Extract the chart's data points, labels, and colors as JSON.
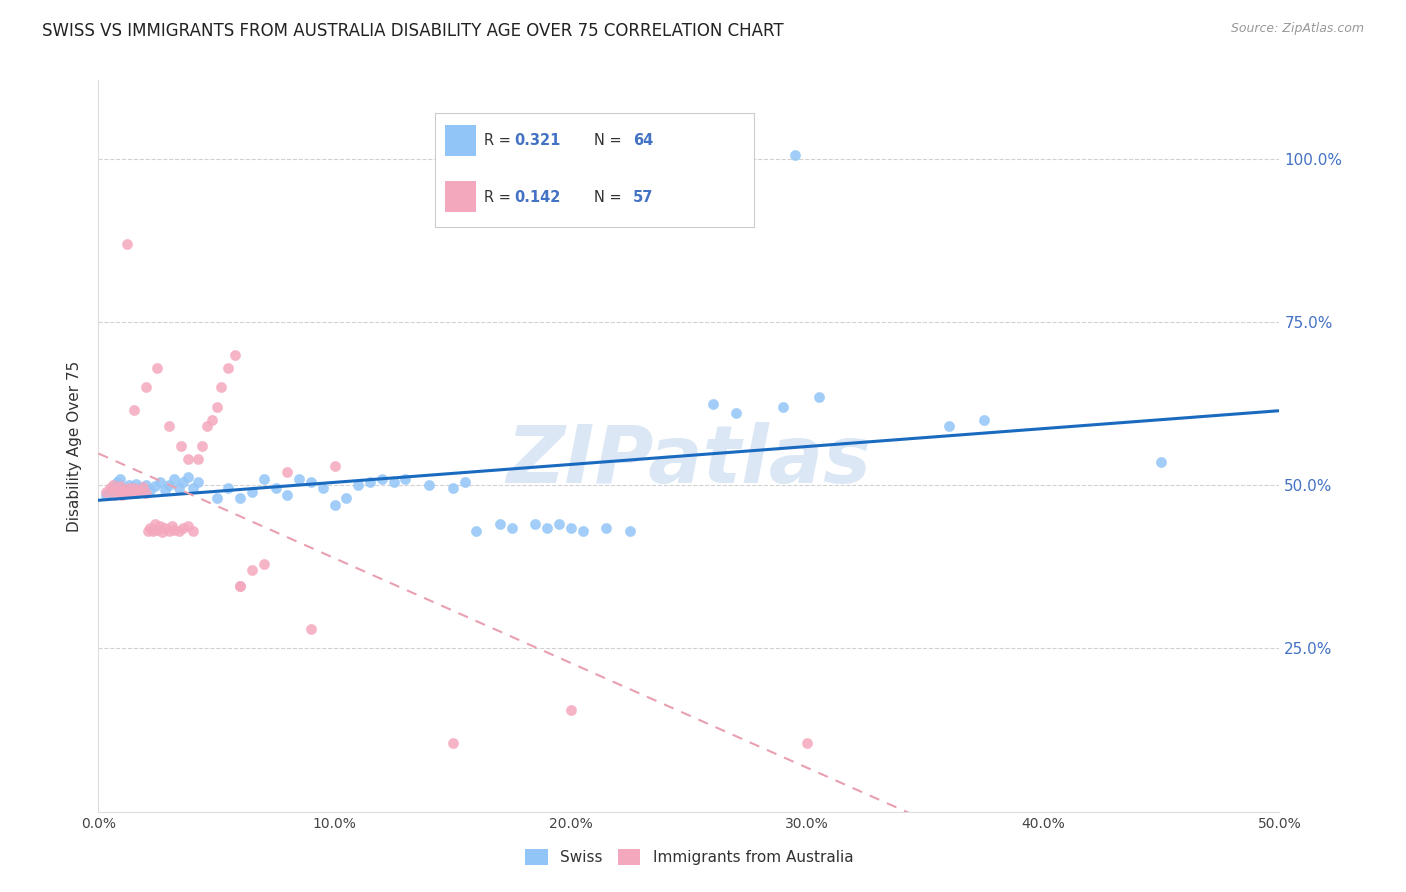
{
  "title": "SWISS VS IMMIGRANTS FROM AUSTRALIA DISABILITY AGE OVER 75 CORRELATION CHART",
  "source": "Source: ZipAtlas.com",
  "ylabel": "Disability Age Over 75",
  "legend_swiss": "Swiss",
  "legend_aus": "Immigrants from Australia",
  "R_swiss": "0.321",
  "N_swiss": "64",
  "R_aus": "0.142",
  "N_aus": "57",
  "swiss_color": "#92c5f7",
  "aus_color": "#f4a8be",
  "swiss_line_color": "#1a6bbf",
  "aus_line_color": "#e8a0b0",
  "watermark_text": "ZIPatlas",
  "watermark_color": "#c5d8f0",
  "background_color": "#ffffff",
  "grid_color": "#cccccc",
  "x_ticks": [
    0.0,
    0.1,
    0.2,
    0.3,
    0.4,
    0.5
  ],
  "x_tick_labels": [
    "0.0%",
    "10.0%",
    "20.0%",
    "30.0%",
    "40.0%",
    "50.0%"
  ],
  "y_ticks": [
    0.25,
    0.5,
    0.75,
    1.0
  ],
  "y_tick_labels": [
    "25.0%",
    "50.0%",
    "75.0%",
    "100.0%"
  ],
  "x_lim": [
    0.0,
    0.5
  ],
  "y_lim": [
    0.0,
    1.12
  ],
  "title_fontsize": 12,
  "tick_color": "#4472c4",
  "swiss_points_x": [
    0.003,
    0.005,
    0.006,
    0.007,
    0.008,
    0.009,
    0.01,
    0.011,
    0.012,
    0.013,
    0.014,
    0.015,
    0.016,
    0.018,
    0.02,
    0.022,
    0.024,
    0.026,
    0.028,
    0.03,
    0.032,
    0.034,
    0.036,
    0.038,
    0.04,
    0.042,
    0.05,
    0.055,
    0.06,
    0.065,
    0.07,
    0.075,
    0.08,
    0.085,
    0.09,
    0.095,
    0.1,
    0.105,
    0.11,
    0.115,
    0.12,
    0.125,
    0.13,
    0.14,
    0.15,
    0.155,
    0.16,
    0.17,
    0.175,
    0.185,
    0.19,
    0.195,
    0.2,
    0.205,
    0.215,
    0.225,
    0.26,
    0.27,
    0.29,
    0.295,
    0.305,
    0.36,
    0.375,
    0.45
  ],
  "swiss_points_y": [
    0.485,
    0.49,
    0.495,
    0.5,
    0.505,
    0.51,
    0.488,
    0.495,
    0.492,
    0.5,
    0.488,
    0.495,
    0.502,
    0.497,
    0.5,
    0.493,
    0.498,
    0.505,
    0.492,
    0.5,
    0.51,
    0.495,
    0.505,
    0.512,
    0.495,
    0.505,
    0.48,
    0.495,
    0.48,
    0.49,
    0.51,
    0.495,
    0.485,
    0.51,
    0.505,
    0.495,
    0.47,
    0.48,
    0.5,
    0.505,
    0.51,
    0.505,
    0.51,
    0.5,
    0.495,
    0.505,
    0.43,
    0.44,
    0.435,
    0.44,
    0.435,
    0.44,
    0.435,
    0.43,
    0.435,
    0.43,
    0.625,
    0.61,
    0.62,
    1.005,
    0.635,
    0.59,
    0.6,
    0.535
  ],
  "aus_points_x": [
    0.003,
    0.005,
    0.006,
    0.007,
    0.008,
    0.009,
    0.01,
    0.011,
    0.012,
    0.013,
    0.014,
    0.015,
    0.016,
    0.017,
    0.018,
    0.019,
    0.02,
    0.021,
    0.022,
    0.023,
    0.024,
    0.025,
    0.026,
    0.027,
    0.028,
    0.03,
    0.031,
    0.032,
    0.034,
    0.036,
    0.038,
    0.04,
    0.042,
    0.044,
    0.046,
    0.048,
    0.05,
    0.052,
    0.055,
    0.058,
    0.06,
    0.065,
    0.07,
    0.015,
    0.02,
    0.025,
    0.03,
    0.035,
    0.038,
    0.012,
    0.06,
    0.08,
    0.1,
    0.15,
    0.2,
    0.09,
    0.3
  ],
  "aus_points_y": [
    0.49,
    0.495,
    0.5,
    0.485,
    0.492,
    0.498,
    0.485,
    0.492,
    0.488,
    0.495,
    0.49,
    0.495,
    0.488,
    0.493,
    0.49,
    0.497,
    0.488,
    0.43,
    0.435,
    0.43,
    0.44,
    0.432,
    0.438,
    0.428,
    0.435,
    0.43,
    0.438,
    0.432,
    0.43,
    0.435,
    0.438,
    0.43,
    0.54,
    0.56,
    0.59,
    0.6,
    0.62,
    0.65,
    0.68,
    0.7,
    0.345,
    0.37,
    0.38,
    0.615,
    0.65,
    0.68,
    0.59,
    0.56,
    0.54,
    0.87,
    0.345,
    0.52,
    0.53,
    0.105,
    0.155,
    0.28,
    0.105
  ]
}
